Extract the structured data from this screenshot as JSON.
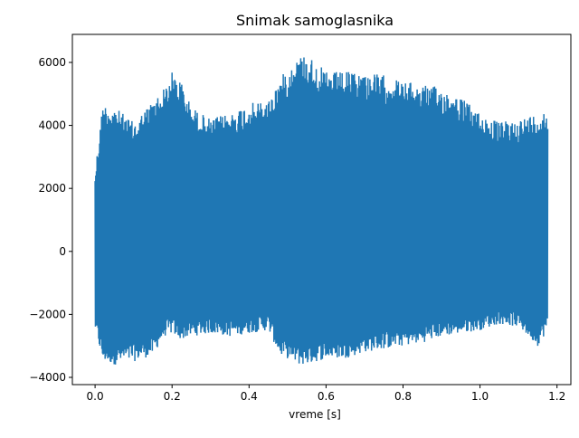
{
  "chart_data": {
    "type": "line",
    "title": "Snimak samoglasnika",
    "xlabel": "vreme [s]",
    "ylabel": "",
    "xlim": [
      -0.059,
      1.236
    ],
    "ylim": [
      -4230,
      6890
    ],
    "x_ticks": [
      0.0,
      0.2,
      0.4,
      0.6,
      0.8,
      1.0,
      1.2
    ],
    "x_tick_labels": [
      "0.0",
      "0.2",
      "0.4",
      "0.6",
      "0.8",
      "1.0",
      "1.2"
    ],
    "y_ticks": [
      -4000,
      -2000,
      0,
      2000,
      4000,
      6000
    ],
    "y_tick_labels": [
      "−4000",
      "−2000",
      "0",
      "2000",
      "4000",
      "6000"
    ],
    "grid": false,
    "series": [
      {
        "color": "#1f77b4",
        "x_range": [
          0.0,
          1.176
        ],
        "envelope": {
          "t": [
            0.0,
            0.02,
            0.05,
            0.1,
            0.15,
            0.18,
            0.2,
            0.22,
            0.25,
            0.3,
            0.35,
            0.4,
            0.45,
            0.48,
            0.5,
            0.53,
            0.55,
            0.6,
            0.65,
            0.7,
            0.75,
            0.8,
            0.85,
            0.9,
            0.95,
            1.0,
            1.05,
            1.1,
            1.15,
            1.176
          ],
          "upper": [
            2600,
            4700,
            4600,
            4100,
            4800,
            5200,
            5700,
            5500,
            4600,
            4200,
            4400,
            4700,
            4800,
            5500,
            5800,
            6200,
            6300,
            5700,
            5700,
            5700,
            5600,
            5400,
            5300,
            5200,
            4900,
            4400,
            4100,
            4200,
            4400,
            4500
          ],
          "lower": [
            -2500,
            -3500,
            -3600,
            -3500,
            -3300,
            -2700,
            -2600,
            -2800,
            -2700,
            -2600,
            -2700,
            -2600,
            -2500,
            -3300,
            -3400,
            -3600,
            -3600,
            -3400,
            -3400,
            -3200,
            -3100,
            -3000,
            -2900,
            -2700,
            -2600,
            -2500,
            -2300,
            -2400,
            -3000,
            -2500
          ]
        }
      }
    ]
  }
}
